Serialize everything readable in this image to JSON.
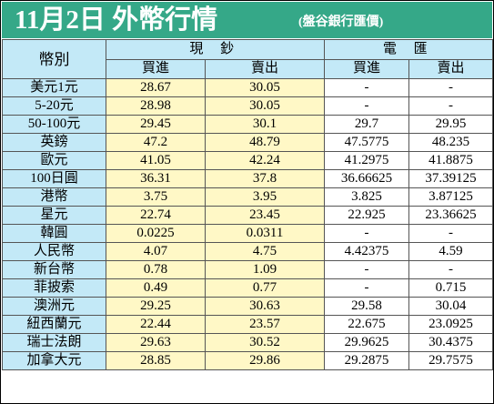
{
  "title": {
    "main": "11月2日 外幣行情",
    "sub": "(盤谷銀行匯價)"
  },
  "colors": {
    "title_bg": "#35a888",
    "header_bg": "#c3e9f7",
    "cash_bg": "#fff8c6",
    "wire_bg": "#ffffff"
  },
  "headers": {
    "currency": "幣別",
    "cash": "現 鈔",
    "wire": "電 匯",
    "buy": "買進",
    "sell": "賣出"
  },
  "rows": [
    {
      "currency": "美元1元",
      "cash_buy": "28.67",
      "cash_sell": "30.05",
      "wire_buy": "-",
      "wire_sell": "-"
    },
    {
      "currency": "5-20元",
      "cash_buy": "28.98",
      "cash_sell": "30.05",
      "wire_buy": "-",
      "wire_sell": "-"
    },
    {
      "currency": "50-100元",
      "cash_buy": "29.45",
      "cash_sell": "30.1",
      "wire_buy": "29.7",
      "wire_sell": "29.95"
    },
    {
      "currency": "英鎊",
      "cash_buy": "47.2",
      "cash_sell": "48.79",
      "wire_buy": "47.5775",
      "wire_sell": "48.235"
    },
    {
      "currency": "歐元",
      "cash_buy": "41.05",
      "cash_sell": "42.24",
      "wire_buy": "41.2975",
      "wire_sell": "41.8875"
    },
    {
      "currency": "100日圓",
      "cash_buy": "36.31",
      "cash_sell": "37.8",
      "wire_buy": "36.66625",
      "wire_sell": "37.39125"
    },
    {
      "currency": "港幣",
      "cash_buy": "3.75",
      "cash_sell": "3.95",
      "wire_buy": "3.825",
      "wire_sell": "3.87125"
    },
    {
      "currency": "星元",
      "cash_buy": "22.74",
      "cash_sell": "23.45",
      "wire_buy": "22.925",
      "wire_sell": "23.36625"
    },
    {
      "currency": "韓圓",
      "cash_buy": "0.0225",
      "cash_sell": "0.0311",
      "wire_buy": "-",
      "wire_sell": "-"
    },
    {
      "currency": "人民幣",
      "cash_buy": "4.07",
      "cash_sell": "4.75",
      "wire_buy": "4.42375",
      "wire_sell": "4.59"
    },
    {
      "currency": "新台幣",
      "cash_buy": "0.78",
      "cash_sell": "1.09",
      "wire_buy": "-",
      "wire_sell": "-"
    },
    {
      "currency": "菲披索",
      "cash_buy": "0.49",
      "cash_sell": "0.77",
      "wire_buy": "-",
      "wire_sell": "0.715"
    },
    {
      "currency": "澳洲元",
      "cash_buy": "29.25",
      "cash_sell": "30.63",
      "wire_buy": "29.58",
      "wire_sell": "30.04"
    },
    {
      "currency": "紐西蘭元",
      "cash_buy": "22.44",
      "cash_sell": "23.57",
      "wire_buy": "22.675",
      "wire_sell": "23.0925"
    },
    {
      "currency": "瑞士法朗",
      "cash_buy": "29.63",
      "cash_sell": "30.52",
      "wire_buy": "29.9625",
      "wire_sell": "30.4375"
    },
    {
      "currency": "加拿大元",
      "cash_buy": "28.85",
      "cash_sell": "29.86",
      "wire_buy": "29.2875",
      "wire_sell": "29.7575"
    }
  ]
}
